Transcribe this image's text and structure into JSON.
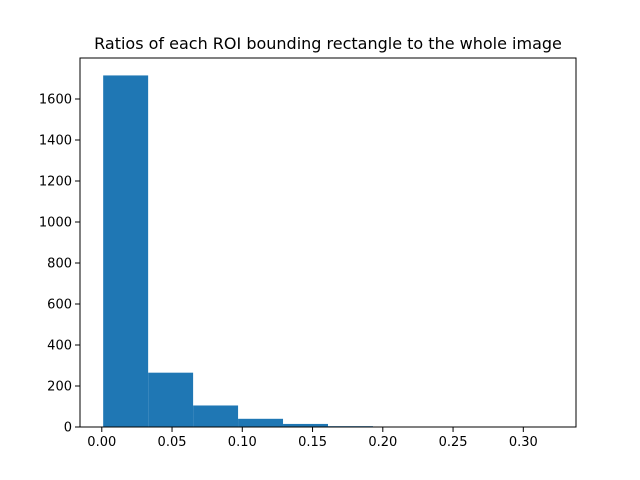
{
  "chart_data": {
    "type": "bar",
    "title": "Ratios of each ROI bounding rectangle to the whole image",
    "xlabel": "",
    "ylabel": "",
    "xlim": [
      -0.0155,
      0.3375
    ],
    "ylim": [
      0,
      1800
    ],
    "grid": false,
    "bar_color": "#1f77b4",
    "bins": [
      {
        "x0": 0.001,
        "x1": 0.033,
        "count": 1715
      },
      {
        "x0": 0.033,
        "x1": 0.065,
        "count": 265
      },
      {
        "x0": 0.065,
        "x1": 0.097,
        "count": 105
      },
      {
        "x0": 0.097,
        "x1": 0.129,
        "count": 40
      },
      {
        "x0": 0.129,
        "x1": 0.161,
        "count": 15
      },
      {
        "x0": 0.161,
        "x1": 0.193,
        "count": 4
      },
      {
        "x0": 0.193,
        "x1": 0.225,
        "count": 2
      },
      {
        "x0": 0.225,
        "x1": 0.257,
        "count": 1
      },
      {
        "x0": 0.257,
        "x1": 0.289,
        "count": 1
      },
      {
        "x0": 0.289,
        "x1": 0.321,
        "count": 1
      }
    ],
    "x_ticks": [
      {
        "value": 0.0,
        "label": "0.00"
      },
      {
        "value": 0.05,
        "label": "0.05"
      },
      {
        "value": 0.1,
        "label": "0.10"
      },
      {
        "value": 0.15,
        "label": "0.15"
      },
      {
        "value": 0.2,
        "label": "0.20"
      },
      {
        "value": 0.25,
        "label": "0.25"
      },
      {
        "value": 0.3,
        "label": "0.30"
      }
    ],
    "y_ticks": [
      {
        "value": 0,
        "label": "0"
      },
      {
        "value": 200,
        "label": "200"
      },
      {
        "value": 400,
        "label": "400"
      },
      {
        "value": 600,
        "label": "600"
      },
      {
        "value": 800,
        "label": "800"
      },
      {
        "value": 1000,
        "label": "1000"
      },
      {
        "value": 1200,
        "label": "1200"
      },
      {
        "value": 1400,
        "label": "1400"
      },
      {
        "value": 1600,
        "label": "1600"
      }
    ]
  }
}
